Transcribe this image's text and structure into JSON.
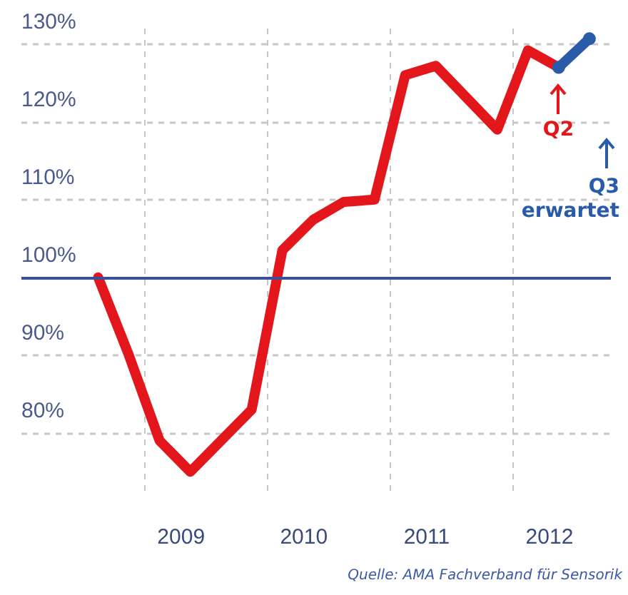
{
  "chart_data": {
    "type": "line",
    "xlim": [
      2008,
      2012.8
    ],
    "xticks": [
      {
        "value": 2009,
        "label": null
      },
      {
        "value": 2009.3,
        "label": "2009"
      },
      {
        "value": 2010,
        "label": null
      },
      {
        "value": 2010.3,
        "label": "2010"
      },
      {
        "value": 2011,
        "label": null
      },
      {
        "value": 2011.3,
        "label": "2011"
      },
      {
        "value": 2012,
        "label": null
      },
      {
        "value": 2012.3,
        "label": "2012"
      }
    ],
    "ylim": [
      72,
      132
    ],
    "yticks": [
      {
        "value": 80,
        "label": "80%"
      },
      {
        "value": 90,
        "label": "90%"
      },
      {
        "value": 100,
        "label": "100%"
      },
      {
        "value": 110,
        "label": "110%"
      },
      {
        "value": 120,
        "label": "120%"
      },
      {
        "value": 130,
        "label": "130%"
      }
    ],
    "grid": true,
    "series": [
      {
        "color": "#e3161b",
        "marker": "none",
        "x": [
          2008.625,
          2008.875,
          2009.125,
          2009.375,
          2009.875,
          2010.125,
          2010.375,
          2010.625,
          2010.875,
          2011.125,
          2011.375,
          2011.875,
          2012.125,
          2012.375
        ],
        "values": [
          100,
          90,
          79,
          75,
          83,
          103.5,
          107.4,
          109.7,
          110,
          126,
          127.2,
          119,
          129.2,
          127
        ]
      },
      {
        "color": "#2a5ba8",
        "marker": "circle",
        "x": [
          2012.375,
          2012.625
        ],
        "values": [
          127,
          130.7
        ]
      }
    ],
    "ref_lines": [
      {
        "axis": "y",
        "value": 100,
        "color": "#3a4f9a",
        "line_style": "solid"
      }
    ],
    "annotations": [
      {
        "text": "Q2",
        "x": 2012.375,
        "y": 127
      },
      "Q3 erwartet",
      "Quelle: AMA Fachverband für Sensorik"
    ]
  }
}
